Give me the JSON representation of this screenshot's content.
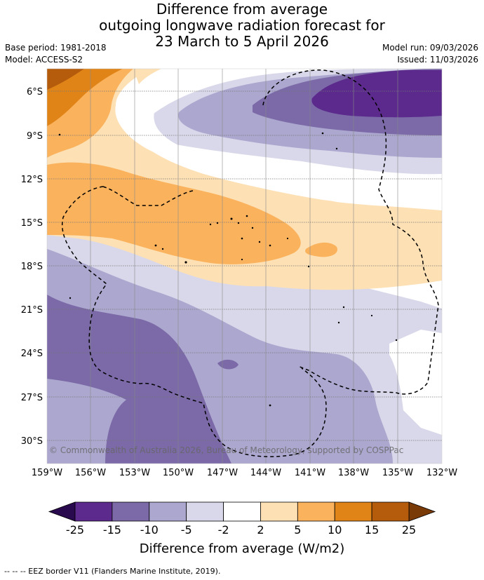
{
  "title": {
    "line1": "Difference from average",
    "line2": "outgoing longwave radiation forecast for",
    "line3": "23 March to 5 April 2026"
  },
  "meta": {
    "base_period": "Base period: 1981-2018",
    "model": "Model: ACCESS-S2",
    "model_run": "Model run: 09/03/2026",
    "issued": "Issued: 11/03/2026"
  },
  "map": {
    "lat_labels": [
      "6°S",
      "9°S",
      "12°S",
      "15°S",
      "18°S",
      "21°S",
      "24°S",
      "27°S",
      "30°S"
    ],
    "lon_labels": [
      "159°W",
      "156°W",
      "153°W",
      "150°W",
      "147°W",
      "144°W",
      "141°W",
      "138°W",
      "135°W",
      "132°W"
    ],
    "copyright": "© Commonwealth of Australia 2026, Bureau of Meteorology, supported by COSPPac"
  },
  "colorbar": {
    "title": "Difference from average (W/m2)",
    "ticks": [
      "-25",
      "-15",
      "-10",
      "-5",
      "-2",
      "2",
      "5",
      "10",
      "15",
      "25"
    ],
    "colors": [
      "#5b2a8c",
      "#7b6aa7",
      "#aca7cf",
      "#d9d8ea",
      "#ffffff",
      "#fde0b4",
      "#fab25d",
      "#e08418",
      "#b45c0c"
    ],
    "under_color": "#2a0a4e",
    "over_color": "#7a3a08"
  },
  "footer": "--  --  -- EEZ border V11 (Flanders Marine Institute, 2019)."
}
